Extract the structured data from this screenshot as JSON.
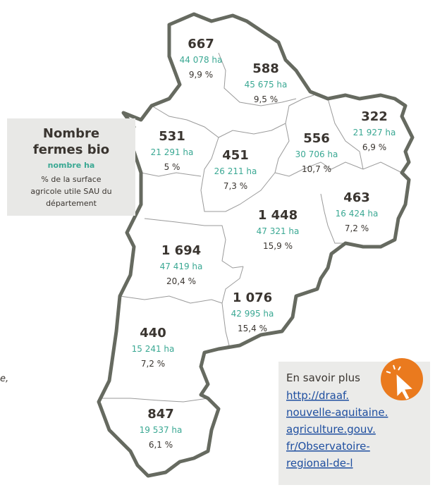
{
  "fragment": "e,",
  "legend": {
    "title_lines": [
      "Nombre",
      "fermes bio"
    ],
    "ha_label": "nombre ha",
    "pct_lines": [
      "% de la surface",
      "agricole utile SAU du",
      "département"
    ]
  },
  "departments": [
    {
      "count": "667",
      "ha": "44 078 ha",
      "pct": "9,9 %"
    },
    {
      "count": "588",
      "ha": "45 675 ha",
      "pct": "9,5 %"
    },
    {
      "count": "322",
      "ha": "21 927 ha",
      "pct": "6,9 %"
    },
    {
      "count": "531",
      "ha": "21 291 ha",
      "pct": "5 %"
    },
    {
      "count": "451",
      "ha": "26 211 ha",
      "pct": "7,3 %"
    },
    {
      "count": "556",
      "ha": "30 706 ha",
      "pct": "10,7 %"
    },
    {
      "count": "463",
      "ha": "16 424 ha",
      "pct": "7,2 %"
    },
    {
      "count": "1 448",
      "ha": "47 321 ha",
      "pct": "15,9 %"
    },
    {
      "count": "1 694",
      "ha": "47 419 ha",
      "pct": "20,4 %"
    },
    {
      "count": "1 076",
      "ha": "42 995 ha",
      "pct": "15,4 %"
    },
    {
      "count": "440",
      "ha": "15 241 ha",
      "pct": "7,2 %"
    },
    {
      "count": "847",
      "ha": "19 537 ha",
      "pct": "6,1 %"
    }
  ],
  "info": {
    "heading": "En savoir plus",
    "link_lines": [
      "http://draaf.",
      "nouvelle-aquitaine.",
      "agriculture.gouv.",
      "fr/Observatoire-",
      "regional-de-l"
    ]
  }
}
